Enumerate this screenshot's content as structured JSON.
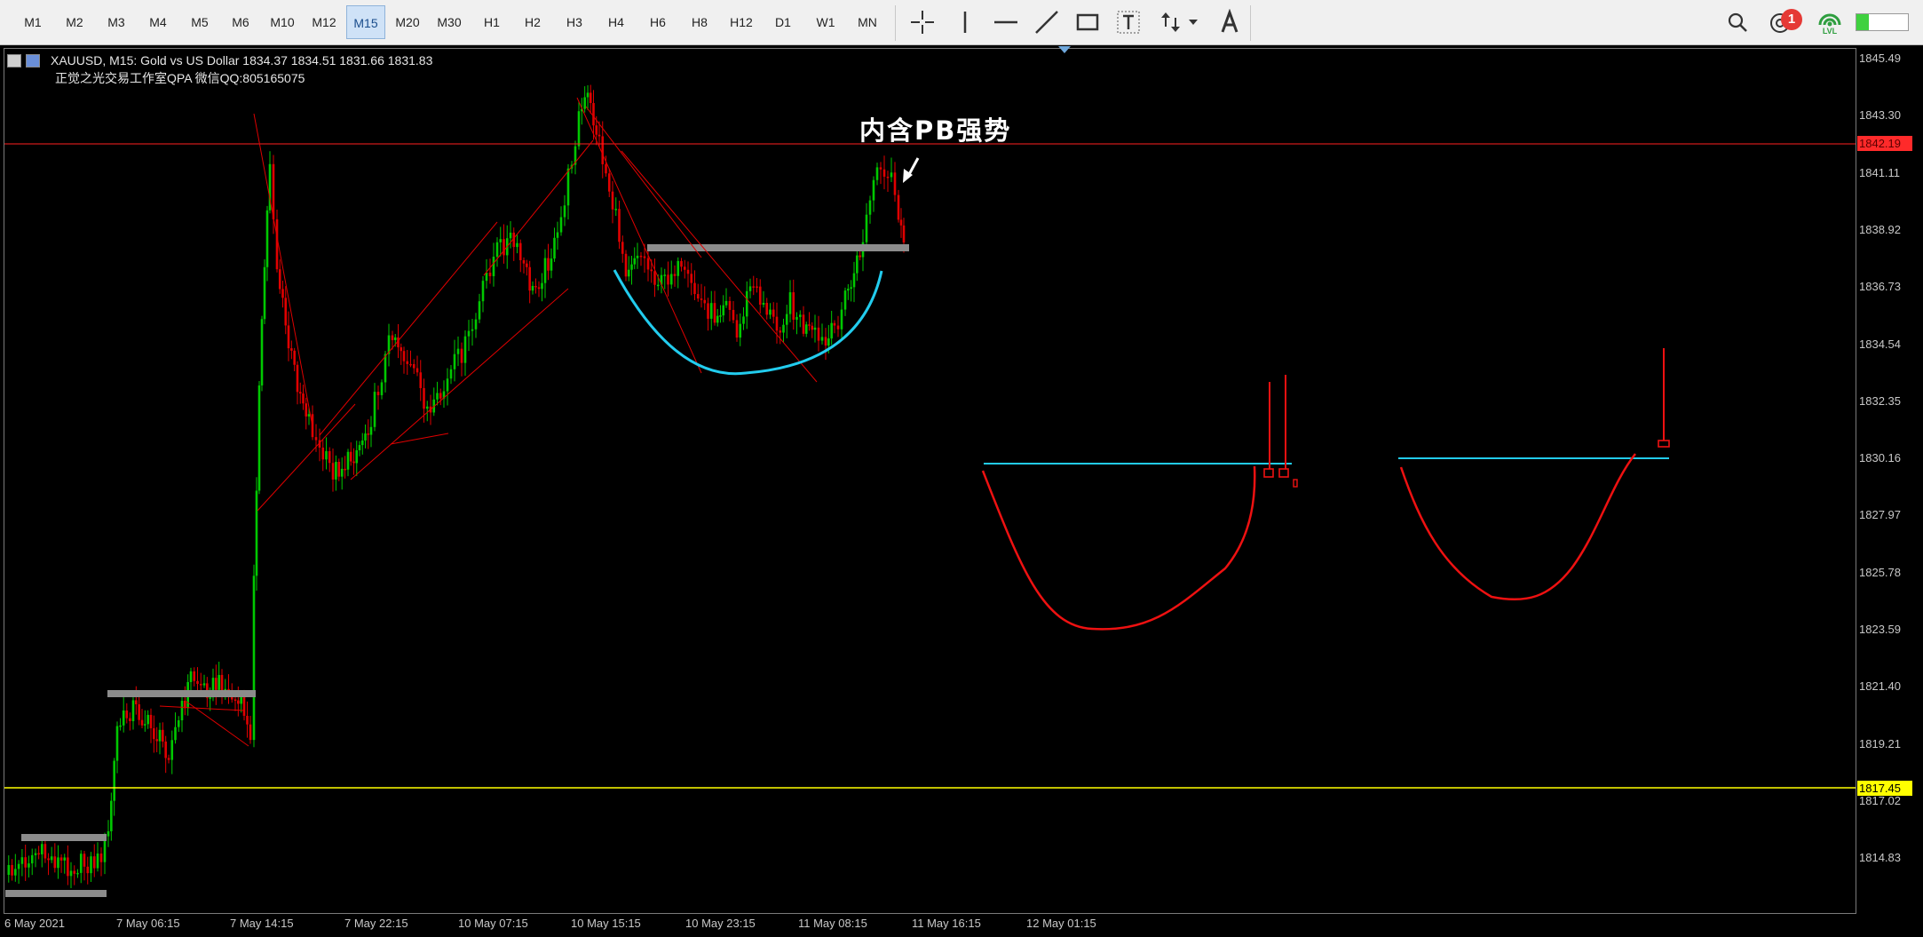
{
  "toolbar": {
    "timeframes": [
      "M1",
      "M2",
      "M3",
      "M4",
      "M5",
      "M6",
      "M10",
      "M12",
      "M15",
      "M20",
      "M30",
      "H1",
      "H2",
      "H3",
      "H4",
      "H6",
      "H8",
      "H12",
      "D1",
      "W1",
      "MN"
    ],
    "active_timeframe": "M15",
    "notification_count": "1",
    "lvl_label": "LVL"
  },
  "chart": {
    "symbol_info": "XAUUSD, M15:  Gold vs US Dollar  1834.37 1834.51 1831.66 1831.83",
    "watermark": "正觉之光交易工作室QPA 微信QQ:805165075",
    "annotation": "内含PB强势",
    "price_axis": [
      "1845.49",
      "1843.30",
      "1841.11",
      "1838.92",
      "1836.73",
      "1834.54",
      "1832.35",
      "1830.16",
      "1827.97",
      "1825.78",
      "1823.59",
      "1821.40",
      "1819.21",
      "1817.02",
      "1814.83"
    ],
    "time_axis": [
      "6 May 2021",
      "7 May 06:15",
      "7 May 14:15",
      "7 May 22:15",
      "10 May 07:15",
      "10 May 15:15",
      "10 May 23:15",
      "11 May 08:15",
      "11 May 16:15",
      "12 May 01:15"
    ],
    "bid_tag": "1842.19",
    "yellow_tag": "1817.45",
    "colors": {
      "background": "#000000",
      "bull": "#00c800",
      "bear": "#e00000",
      "bid_line": "#ff2020",
      "support_line": "#ffff00",
      "cup_cyan": "#22ccee",
      "sketch_red": "#ee1111",
      "zone_gray": "#8c8c8c"
    }
  }
}
